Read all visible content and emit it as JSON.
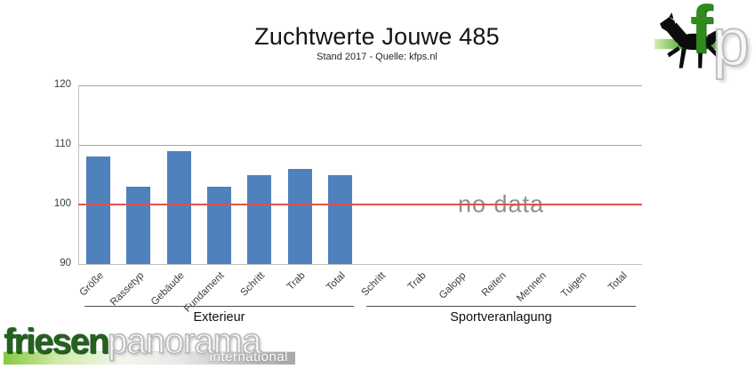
{
  "slide": {
    "title": "Zuchtwerte Jouwe 485",
    "subtitle": "Stand 2017 - Quelle: kfps.nl"
  },
  "chart_data": {
    "type": "bar",
    "title": "Zuchtwerte Jouwe 485",
    "subtitle": "Stand 2017 - Quelle: kfps.nl",
    "ylim": [
      90,
      120
    ],
    "yticks": [
      90,
      100,
      110,
      120
    ],
    "grid": true,
    "legend": "none",
    "bar_color": "#4f81bd",
    "axis_text_color": "#3d3d3d",
    "reference_line": {
      "value": 100,
      "color": "#e0524e"
    },
    "groups": [
      {
        "label": "Exterieur",
        "categories": [
          "Größe",
          "Rassetyp",
          "Gebäude",
          "Fundament",
          "Schritt",
          "Trab",
          "Total"
        ],
        "values": [
          108,
          103,
          109,
          103,
          105,
          106,
          105
        ]
      },
      {
        "label": "Sportveranlagung",
        "categories": [
          "Schritt",
          "Trab",
          "Galopp",
          "Reiten",
          "Mennen",
          "Tuigen",
          "Total"
        ],
        "values": [
          null,
          null,
          null,
          null,
          null,
          null,
          null
        ],
        "no_data_label": "no data"
      }
    ]
  },
  "logos": {
    "fp": {
      "letter_f": "f",
      "letter_p": "p",
      "green": "#2f8b1d"
    },
    "friesenpanorama": {
      "word_green": "friesen",
      "word_gray": "panorama",
      "tagline": "International",
      "green": "#24621f"
    }
  }
}
